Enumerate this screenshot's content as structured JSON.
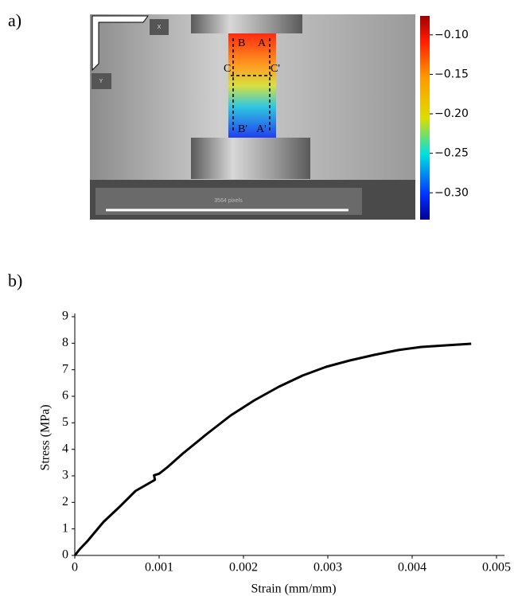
{
  "panel_labels": [
    "a)",
    "b)"
  ],
  "image": {
    "points": [
      "B",
      "A",
      "C",
      "C'",
      "B'",
      "A'"
    ],
    "axes": [
      "X",
      "Y"
    ],
    "scale_bar": "3564 pixels",
    "colorbar": {
      "lim": [
        -0.334,
        -0.076
      ],
      "ticks": [
        {
          "value": -0.1,
          "label": "−0.10"
        },
        {
          "value": -0.15,
          "label": "−0.15"
        },
        {
          "value": -0.2,
          "label": "−0.20"
        },
        {
          "value": -0.25,
          "label": "−0.25"
        },
        {
          "value": -0.3,
          "label": "−0.30"
        }
      ]
    }
  },
  "chart_data": {
    "type": "line",
    "xlabel": "Strain (mm/mm)",
    "ylabel": "Stress (MPa)",
    "color": "#000000",
    "x": [
      0,
      6e-05,
      0.00015,
      0.00034,
      0.00053,
      0.00072,
      0.00095,
      0.00094,
      0.001,
      0.0011,
      0.00128,
      0.00157,
      0.00185,
      0.00213,
      0.00242,
      0.0027,
      0.00298,
      0.00326,
      0.00355,
      0.00383,
      0.00411,
      0.0044,
      0.0047
    ],
    "values": [
      0,
      0.24,
      0.54,
      1.26,
      1.83,
      2.43,
      2.85,
      3.02,
      3.08,
      3.33,
      3.84,
      4.59,
      5.28,
      5.85,
      6.36,
      6.78,
      7.11,
      7.35,
      7.56,
      7.74,
      7.86,
      7.92,
      7.98
    ],
    "xlim": [
      0,
      0.005
    ],
    "ylim": [
      0,
      9
    ],
    "xticks": [
      0,
      0.001,
      0.002,
      0.003,
      0.004,
      0.005
    ],
    "yticks": [
      0,
      1,
      2,
      3,
      4,
      5,
      6,
      7,
      8,
      9
    ]
  }
}
